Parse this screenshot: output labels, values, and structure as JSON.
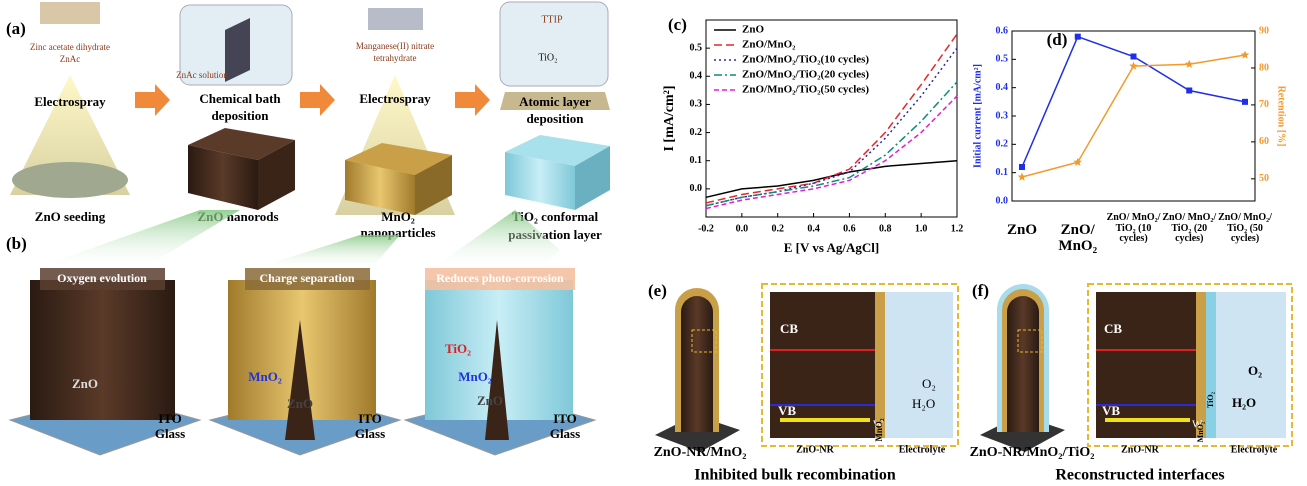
{
  "panel_a": {
    "label": "(a)",
    "zinc_precursor": "Zinc acetate dihydrate",
    "zinc_short": "ZnAc",
    "step1": "Electrospray",
    "step2": [
      "Chemical bath",
      "deposition"
    ],
    "solution": "ZnAc solution",
    "mn_precursor": [
      "Manganese(II) nitrate",
      "tetrahydrate"
    ],
    "step3": "Electrospray",
    "ald_precursor": "TTIP",
    "ald_product": "TiO₂",
    "step4": [
      "Atomic layer",
      "deposition"
    ],
    "stage1": "ZnO seeding",
    "stage2": "ZnO nanorods",
    "stage3": [
      "MnO₂",
      "nanoparticles"
    ],
    "stage4": [
      "TiO₂ conformal",
      "passivation layer"
    ]
  },
  "panel_b": {
    "label": "(b)",
    "structures": [
      {
        "banner": "Oxygen evolution",
        "layers": [
          "ZnO"
        ],
        "substrate": [
          "ITO",
          "Glass"
        ]
      },
      {
        "banner": "Charge separation",
        "layers": [
          "MnO₂",
          "ZnO"
        ],
        "substrate": [
          "ITO",
          "Glass"
        ]
      },
      {
        "banner": "Reduces photo-corrosion",
        "layers": [
          "TiO₂",
          "MnO₂",
          "ZnO"
        ],
        "substrate": [
          "ITO",
          "Glass"
        ]
      }
    ]
  },
  "panel_e": {
    "label": "(e)",
    "cb": "CB",
    "vb": "VB",
    "o2": "O₂",
    "h2o": "H₂O",
    "w": "W",
    "core": "ZnO-NR",
    "shell": "MnO₂",
    "electrolyte": "Electrolyte",
    "structure": "ZnO-NR/MnO₂",
    "caption": "Inhibited bulk recombination"
  },
  "panel_f": {
    "label": "(f)",
    "cb": "CB",
    "vb": "VB",
    "o2": "O₂",
    "h2o": "H₂O",
    "w": "W",
    "core": "ZnO-NR",
    "shell": "MnO₂",
    "coat": "TiO₂",
    "electrolyte": "Electrolyte",
    "structure": "ZnO-NR/MnO₂/TiO₂",
    "caption": "Reconstructed interfaces"
  },
  "chart_data": [
    {
      "type": "line",
      "label": "(c)",
      "xlabel": "E [V vs Ag/AgCl]",
      "ylabel": "I [mA/cm²]",
      "legend": "upper left",
      "x": [
        -0.2,
        0,
        0.2,
        0.4,
        0.6,
        0.8,
        1.0,
        1.2
      ],
      "xlim": [
        -0.2,
        1.2
      ],
      "xticks": [
        -0.2,
        {
          "value": 0,
          "label": "0.0"
        },
        0.2,
        0.4,
        0.6,
        0.8,
        {
          "value": 1,
          "label": "1.0"
        },
        1.2
      ],
      "ylim": [
        -0.1,
        0.6
      ],
      "yticks": [
        {
          "value": 0,
          "label": "0.0"
        },
        0.1,
        0.2,
        0.3,
        0.4,
        0.5
      ],
      "series": [
        {
          "name": "ZnO",
          "color": "#000000",
          "dash": "",
          "values": [
            -0.03,
            0.0,
            0.01,
            0.03,
            0.06,
            0.08,
            0.09,
            0.1
          ]
        },
        {
          "name": "ZnO/MnO₂",
          "color": "#e8262a",
          "dash": "8 4",
          "values": [
            -0.05,
            -0.02,
            0.0,
            0.02,
            0.07,
            0.2,
            0.37,
            0.55
          ]
        },
        {
          "name": "ZnO/MnO₂/TiO₂(10 cycles)",
          "color": "#2a2aa8",
          "dash": "2 3",
          "values": [
            -0.06,
            -0.03,
            -0.01,
            0.02,
            0.06,
            0.18,
            0.33,
            0.5
          ]
        },
        {
          "name": "ZnO/MnO₂/TiO₂(20 cycles)",
          "color": "#0e8a7a",
          "dash": "8 3 2 3",
          "values": [
            -0.06,
            -0.03,
            -0.01,
            0.01,
            0.04,
            0.12,
            0.24,
            0.38
          ]
        },
        {
          "name": "ZnO/MnO₂/TiO₂(50 cycles)",
          "color": "#e020d0",
          "dash": "5 3",
          "values": [
            -0.07,
            -0.04,
            -0.02,
            0.0,
            0.03,
            0.1,
            0.2,
            0.33
          ]
        }
      ]
    },
    {
      "type": "line",
      "label": "(d)",
      "ylabel": "Initial current [mA/cm²]",
      "y2label": "Retention [%]",
      "categories": [
        "ZnO",
        "ZnO/ MnO₂",
        "ZnO/ MnO₂/ TiO₂ (10 cycles)",
        "ZnO/ MnO₂/ TiO₂ (20 cycles)",
        "ZnO/ MnO₂/ TiO₂ (50 cycles)"
      ],
      "ylim": [
        0,
        0.6
      ],
      "yticks": [
        {
          "value": 0,
          "label": "0.0"
        },
        0.1,
        0.2,
        0.3,
        0.4,
        0.5,
        0.6
      ],
      "y2lim": [
        44,
        90
      ],
      "y2ticks": [
        50,
        60,
        70,
        80,
        90
      ],
      "series": [
        {
          "name": "Initial current",
          "color": "#1f2ee8",
          "marker": "square",
          "values": [
            0.12,
            0.58,
            0.51,
            0.39,
            0.35
          ]
        },
        {
          "name": "Retention",
          "color": "#f39a2d",
          "marker": "star",
          "axis": "y2",
          "values": [
            50.5,
            54.5,
            80.5,
            81,
            83.5
          ]
        }
      ]
    }
  ]
}
